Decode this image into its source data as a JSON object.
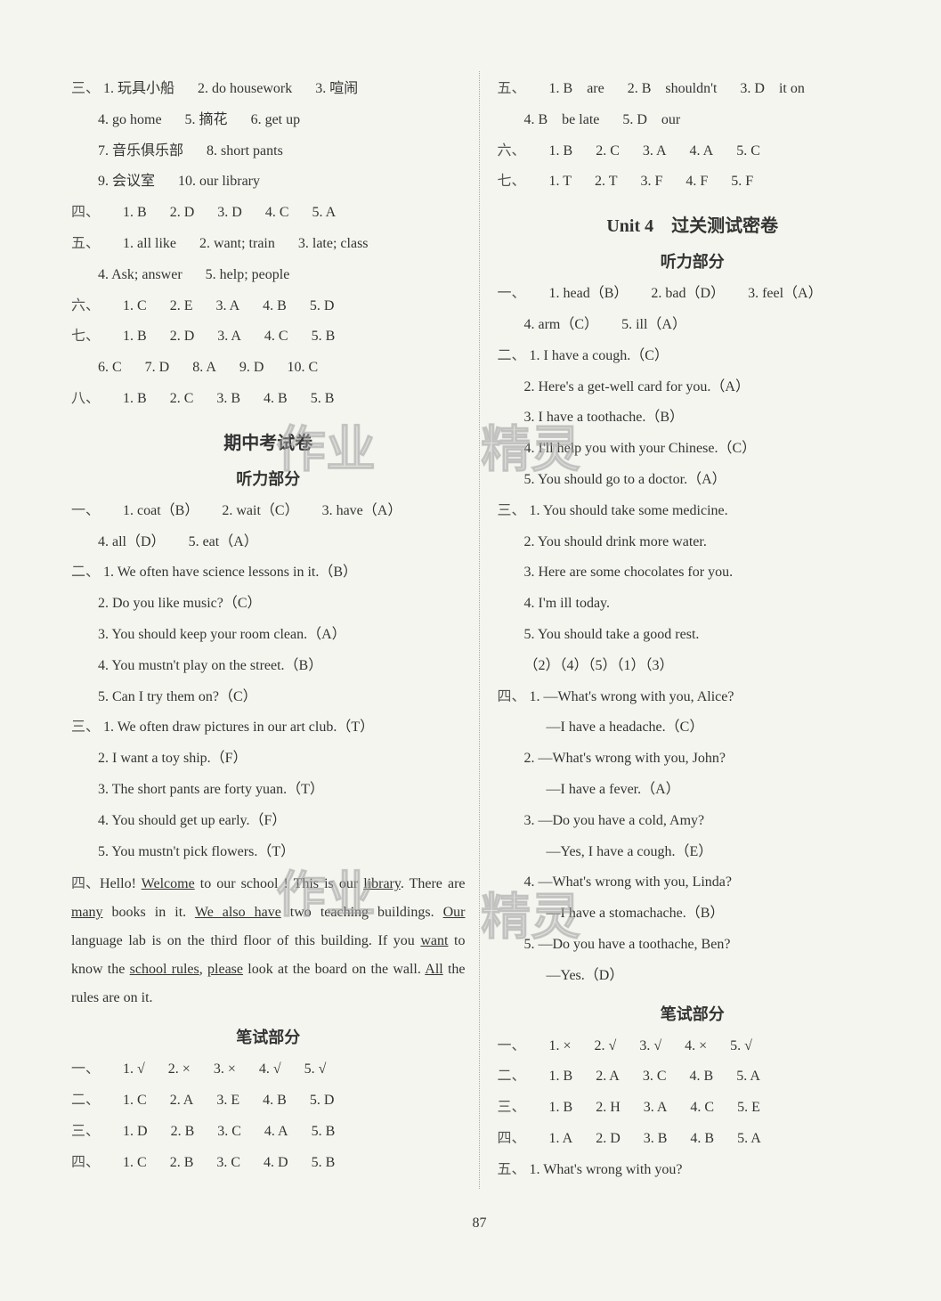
{
  "pageNumber": "87",
  "watermarks": [
    "作业",
    "作业",
    "精灵",
    "精灵"
  ],
  "left": {
    "s3": {
      "label": "三、",
      "items": [
        "1. 玩具小船",
        "2. do housework",
        "3. 喧闹",
        "4. go home",
        "5. 摘花",
        "6. get up",
        "7. 音乐俱乐部",
        "8. short pants",
        "9. 会议室",
        "10. our library"
      ]
    },
    "s4": {
      "label": "四、",
      "row": [
        "1. B",
        "2. D",
        "3. D",
        "4. C",
        "5. A"
      ]
    },
    "s5": {
      "label": "五、",
      "items": [
        "1. all like",
        "2. want; train",
        "3. late; class",
        "4. Ask; answer",
        "5. help; people"
      ]
    },
    "s6": {
      "label": "六、",
      "row": [
        "1. C",
        "2. E",
        "3. A",
        "4. B",
        "5. D"
      ]
    },
    "s7": {
      "label": "七、",
      "rows": [
        [
          "1. B",
          "2. D",
          "3. A",
          "4. C",
          "5. B"
        ],
        [
          "6. C",
          "7. D",
          "8. A",
          "9. D",
          "10. C"
        ]
      ]
    },
    "s8": {
      "label": "八、",
      "row": [
        "1. B",
        "2. C",
        "3. B",
        "4. B",
        "5. B"
      ]
    },
    "midTitle": "期中考试卷",
    "listenTitle": "听力部分",
    "l1": {
      "label": "一、",
      "items": [
        "1. coat（B）",
        "2. wait（C）",
        "3. have（A）",
        "4. all（D）",
        "5. eat（A）"
      ]
    },
    "l2": {
      "label": "二、",
      "items": [
        "1. We often have science lessons in it.（B）",
        "2. Do you like music?（C）",
        "3. You should keep your room clean.（A）",
        "4. You mustn't play on the street.（B）",
        "5. Can I try them on?（C）"
      ]
    },
    "l3": {
      "label": "三、",
      "items": [
        "1. We often draw pictures in our art club.（T）",
        "2. I want a toy ship.（F）",
        "3. The short pants are forty yuan.（T）",
        "4. You should get up early.（F）",
        "5. You mustn't pick flowers.（T）"
      ]
    },
    "l4": {
      "label": "四、",
      "para": {
        "pre": "Hello! ",
        "u1": "Welcome",
        "p2": " to our school ! This is our ",
        "u2": "library",
        "p3": ". There are ",
        "u3": "many",
        "p4": " books in it. ",
        "u4": "We also have",
        "p5": " two teaching buildings. ",
        "u5": "Our",
        "p6": " language lab is on the third floor of this building. If you ",
        "u6": "want",
        "p7": " to know the ",
        "u7": "school rules",
        "p8": ", ",
        "u8": "please",
        "p9": " look at the board on the wall. ",
        "u9": "All",
        "p10": " the rules are on it."
      }
    },
    "writeTitle": "笔试部分",
    "w1": {
      "label": "一、",
      "row": [
        "1. √",
        "2. ×",
        "3. ×",
        "4. √",
        "5. √"
      ]
    },
    "w2": {
      "label": "二、",
      "row": [
        "1. C",
        "2. A",
        "3. E",
        "4. B",
        "5. D"
      ]
    },
    "w3": {
      "label": "三、",
      "row": [
        "1. D",
        "2. B",
        "3. C",
        "4. A",
        "5. B"
      ]
    },
    "w4": {
      "label": "四、",
      "row": [
        "1. C",
        "2. B",
        "3. C",
        "4. D",
        "5. B"
      ]
    }
  },
  "right": {
    "r5": {
      "label": "五、",
      "row1": [
        "1. B　are",
        "2. B　shouldn't",
        "3. D　it on"
      ],
      "row2": [
        "4. B　be late",
        "5. D　our"
      ]
    },
    "r6": {
      "label": "六、",
      "row": [
        "1. B",
        "2. C",
        "3. A",
        "4. A",
        "5. C"
      ]
    },
    "r7": {
      "label": "七、",
      "row": [
        "1. T",
        "2. T",
        "3. F",
        "4. F",
        "5. F"
      ]
    },
    "unitTitle": "Unit 4　过关测试密卷",
    "listenTitle": "听力部分",
    "u1": {
      "label": "一、",
      "items": [
        "1. head（B）",
        "2. bad（D）",
        "3. feel（A）",
        "4. arm（C）",
        "5. ill（A）"
      ]
    },
    "u2": {
      "label": "二、",
      "items": [
        "1. I have a cough.（C）",
        "2. Here's a get-well card for you.（A）",
        "3. I have a toothache.（B）",
        "4. I'll help you with your Chinese.（C）",
        "5. You should go to a doctor.（A）"
      ]
    },
    "u3": {
      "label": "三、",
      "items": [
        "1. You should take some medicine.",
        "2. You should drink more water.",
        "3. Here are some chocolates for you.",
        "4. I'm ill today.",
        "5. You should take a good rest."
      ],
      "order": "（2）（4）（5）（1）（3）"
    },
    "u4": {
      "label": "四、",
      "items": [
        {
          "q": "1. —What's wrong with you, Alice?",
          "a": "—I have a headache.（C）"
        },
        {
          "q": "2. —What's wrong with you, John?",
          "a": "—I have a fever.（A）"
        },
        {
          "q": "3. —Do you have a cold, Amy?",
          "a": "—Yes, I have a cough.（E）"
        },
        {
          "q": "4. —What's wrong with you, Linda?",
          "a": "—I have a stomachache.（B）"
        },
        {
          "q": "5. —Do you have a toothache, Ben?",
          "a": "—Yes.（D）"
        }
      ]
    },
    "writeTitle": "笔试部分",
    "w1": {
      "label": "一、",
      "row": [
        "1. ×",
        "2. √",
        "3. √",
        "4. ×",
        "5. √"
      ]
    },
    "w2": {
      "label": "二、",
      "row": [
        "1. B",
        "2. A",
        "3. C",
        "4. B",
        "5. A"
      ]
    },
    "w3": {
      "label": "三、",
      "row": [
        "1. B",
        "2. H",
        "3. A",
        "4. C",
        "5. E"
      ]
    },
    "w4": {
      "label": "四、",
      "row": [
        "1. A",
        "2. D",
        "3. B",
        "4. B",
        "5. A"
      ]
    },
    "w5": {
      "label": "五、",
      "item": "1. What's wrong with you?"
    }
  }
}
